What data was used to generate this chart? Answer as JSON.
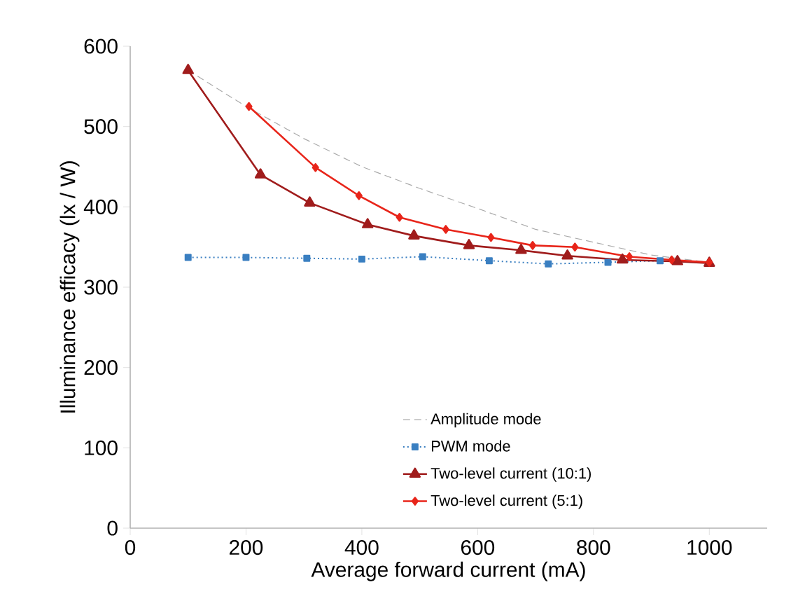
{
  "chart_data": {
    "type": "line",
    "xlabel": "Average forward current (mA)",
    "ylabel": "Illuminance efficacy (lx / W)",
    "xlim": [
      0,
      1100
    ],
    "ylim": [
      0,
      600
    ],
    "xticks": [
      0,
      200,
      400,
      600,
      800,
      1000
    ],
    "yticks": [
      0,
      100,
      200,
      300,
      400,
      500,
      600
    ],
    "grid": false,
    "legend": "bottom right",
    "series": [
      {
        "name": "Amplitude mode",
        "color": "#aaaaaa",
        "marker": "none",
        "line_style": "dashed",
        "x": [
          100,
          200,
          300,
          400,
          500,
          600,
          700,
          800,
          900,
          1000
        ],
        "values": [
          570,
          525,
          485,
          450,
          423,
          398,
          372,
          356,
          340,
          331
        ]
      },
      {
        "name": "PWM mode",
        "color": "#3a7fc1",
        "marker": "square",
        "line_style": "dotted",
        "x": [
          100,
          200,
          305,
          400,
          505,
          620,
          722,
          825,
          915
        ],
        "values": [
          337,
          337,
          336,
          335,
          338,
          333,
          329,
          331,
          333
        ]
      },
      {
        "name": "Two-level current (10:1)",
        "color": "#a01c1c",
        "marker": "triangle",
        "line_style": "solid",
        "x": [
          100,
          225,
          310,
          410,
          490,
          585,
          675,
          755,
          850,
          945,
          1000
        ],
        "values": [
          570,
          440,
          405,
          378,
          364,
          352,
          346,
          339,
          334,
          332,
          330
        ]
      },
      {
        "name": "Two-level current (5:1)",
        "color": "#e8251a",
        "marker": "diamond",
        "line_style": "solid",
        "x": [
          205,
          320,
          395,
          465,
          545,
          623,
          695,
          768,
          862,
          935,
          1000
        ],
        "values": [
          525,
          449,
          414,
          387,
          372,
          362,
          352,
          350,
          338,
          334,
          331
        ]
      }
    ]
  }
}
